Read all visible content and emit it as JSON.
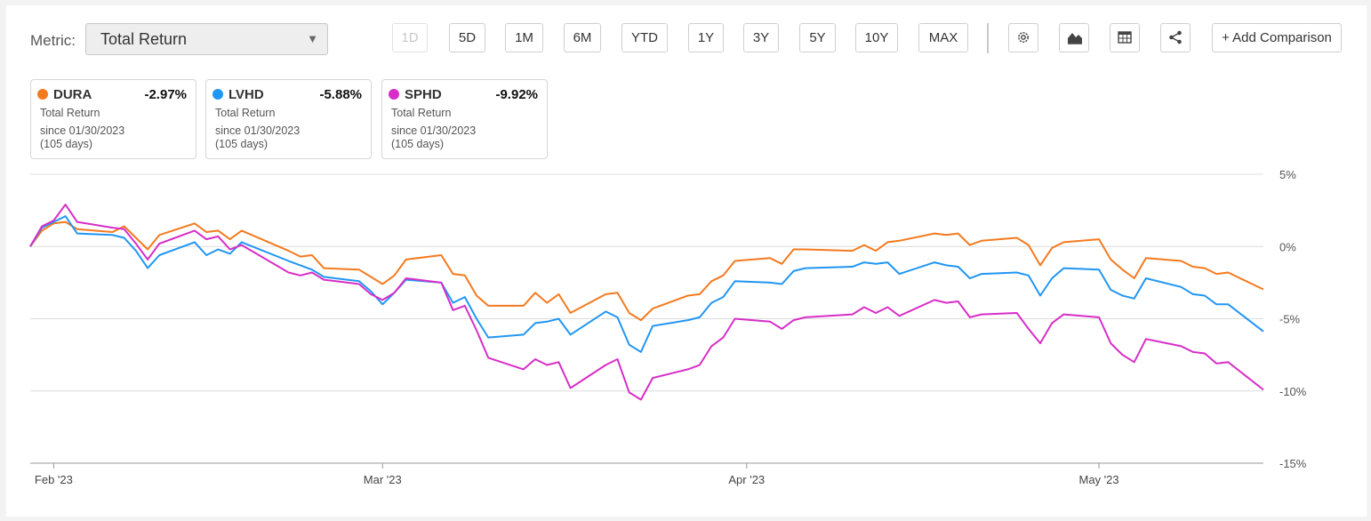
{
  "metric": {
    "label": "Metric:",
    "selected": "Total Return"
  },
  "ranges": [
    "1D",
    "5D",
    "1M",
    "6M",
    "YTD",
    "1Y",
    "3Y",
    "5Y",
    "10Y",
    "MAX"
  ],
  "disabled_range": "1D",
  "toolbar": {
    "icons": [
      "gear-icon",
      "area-chart-icon",
      "table-icon",
      "share-icon"
    ],
    "add_comparison": "+ Add Comparison"
  },
  "cards": [
    {
      "ticker": "DURA",
      "value": "-2.97%",
      "metric": "Total Return",
      "since": "since 01/30/2023",
      "days": "(105 days)",
      "color": "#f47a1f"
    },
    {
      "ticker": "LVHD",
      "value": "-5.88%",
      "metric": "Total Return",
      "since": "since 01/30/2023",
      "days": "(105 days)",
      "color": "#2196f3"
    },
    {
      "ticker": "SPHD",
      "value": "-9.92%",
      "metric": "Total Return",
      "since": "since 01/30/2023",
      "days": "(105 days)",
      "color": "#d72ec8"
    }
  ],
  "chart_data": {
    "type": "line",
    "ylim": [
      -15,
      5
    ],
    "yticks": [
      5,
      0,
      -5,
      -10,
      -15
    ],
    "ytick_labels": [
      "5%",
      "0%",
      "-5%",
      "-10%",
      "-15%"
    ],
    "xlim": [
      "2023-01-30",
      "2023-05-15"
    ],
    "xticks": [
      {
        "date": "2023-02-01",
        "label": "Feb '23"
      },
      {
        "date": "2023-03-01",
        "label": "Mar '23"
      },
      {
        "date": "2023-04-01",
        "label": "Apr '23"
      },
      {
        "date": "2023-05-01",
        "label": "May '23"
      }
    ],
    "grid": true,
    "dates": [
      "2023-01-30",
      "2023-01-31",
      "2023-02-01",
      "2023-02-02",
      "2023-02-03",
      "2023-02-06",
      "2023-02-07",
      "2023-02-08",
      "2023-02-09",
      "2023-02-10",
      "2023-02-13",
      "2023-02-14",
      "2023-02-15",
      "2023-02-16",
      "2023-02-17",
      "2023-02-21",
      "2023-02-22",
      "2023-02-23",
      "2023-02-24",
      "2023-02-27",
      "2023-02-28",
      "2023-03-01",
      "2023-03-02",
      "2023-03-03",
      "2023-03-06",
      "2023-03-07",
      "2023-03-08",
      "2023-03-09",
      "2023-03-10",
      "2023-03-13",
      "2023-03-14",
      "2023-03-15",
      "2023-03-16",
      "2023-03-17",
      "2023-03-20",
      "2023-03-21",
      "2023-03-22",
      "2023-03-23",
      "2023-03-24",
      "2023-03-27",
      "2023-03-28",
      "2023-03-29",
      "2023-03-30",
      "2023-03-31",
      "2023-04-03",
      "2023-04-04",
      "2023-04-05",
      "2023-04-06",
      "2023-04-10",
      "2023-04-11",
      "2023-04-12",
      "2023-04-13",
      "2023-04-14",
      "2023-04-17",
      "2023-04-18",
      "2023-04-19",
      "2023-04-20",
      "2023-04-21",
      "2023-04-24",
      "2023-04-25",
      "2023-04-26",
      "2023-04-27",
      "2023-04-28",
      "2023-05-01",
      "2023-05-02",
      "2023-05-03",
      "2023-05-04",
      "2023-05-05",
      "2023-05-08",
      "2023-05-09",
      "2023-05-10",
      "2023-05-11",
      "2023-05-12",
      "2023-05-15"
    ],
    "series": [
      {
        "name": "DURA",
        "color": "#f47a1f",
        "values": [
          0,
          1.1,
          1.6,
          1.7,
          1.2,
          1.0,
          1.4,
          0.6,
          -0.2,
          0.8,
          1.6,
          1.0,
          1.1,
          0.5,
          1.1,
          -0.3,
          -0.7,
          -0.6,
          -1.5,
          -1.6,
          -2.1,
          -2.6,
          -2.0,
          -0.9,
          -0.6,
          -1.9,
          -2.0,
          -3.4,
          -4.1,
          -4.1,
          -3.2,
          -3.9,
          -3.3,
          -4.6,
          -3.3,
          -3.2,
          -4.6,
          -5.1,
          -4.3,
          -3.4,
          -3.3,
          -2.4,
          -2.0,
          -1.0,
          -0.8,
          -1.2,
          -0.2,
          -0.2,
          -0.3,
          0.1,
          -0.3,
          0.3,
          0.4,
          0.9,
          0.8,
          0.9,
          0.1,
          0.4,
          0.6,
          0.1,
          -1.3,
          -0.1,
          0.3,
          0.5,
          -0.9,
          -1.6,
          -2.2,
          -0.8,
          -1.0,
          -1.4,
          -1.5,
          -1.9,
          -1.8,
          -2.97
        ]
      },
      {
        "name": "LVHD",
        "color": "#2196f3",
        "values": [
          0,
          1.3,
          1.7,
          2.1,
          0.9,
          0.8,
          0.6,
          -0.3,
          -1.5,
          -0.6,
          0.3,
          -0.6,
          -0.2,
          -0.5,
          0.3,
          -1.0,
          -1.3,
          -1.6,
          -2.1,
          -2.4,
          -3.1,
          -4.0,
          -3.2,
          -2.3,
          -2.5,
          -3.9,
          -3.5,
          -5.0,
          -6.3,
          -6.1,
          -5.3,
          -5.2,
          -5.0,
          -6.1,
          -4.5,
          -4.9,
          -6.8,
          -7.3,
          -5.5,
          -5.1,
          -4.9,
          -3.9,
          -3.5,
          -2.4,
          -2.5,
          -2.6,
          -1.7,
          -1.5,
          -1.4,
          -1.1,
          -1.2,
          -1.1,
          -1.9,
          -1.1,
          -1.3,
          -1.4,
          -2.2,
          -1.9,
          -1.8,
          -2.0,
          -3.4,
          -2.2,
          -1.5,
          -1.6,
          -3.0,
          -3.4,
          -3.6,
          -2.2,
          -2.8,
          -3.3,
          -3.4,
          -4.0,
          -4.0,
          -5.88
        ]
      },
      {
        "name": "SPHD",
        "color": "#d72ec8",
        "values": [
          0,
          1.4,
          1.8,
          2.9,
          1.7,
          1.3,
          1.2,
          0.2,
          -0.9,
          0.2,
          1.1,
          0.5,
          0.7,
          -0.2,
          0.1,
          -1.8,
          -2.0,
          -1.8,
          -2.3,
          -2.6,
          -3.3,
          -3.7,
          -3.2,
          -2.2,
          -2.5,
          -4.4,
          -4.1,
          -5.8,
          -7.7,
          -8.5,
          -7.8,
          -8.2,
          -8.0,
          -9.8,
          -8.2,
          -7.8,
          -10.1,
          -10.6,
          -9.1,
          -8.5,
          -8.2,
          -6.9,
          -6.3,
          -5.0,
          -5.2,
          -5.7,
          -5.1,
          -4.9,
          -4.7,
          -4.2,
          -4.6,
          -4.2,
          -4.8,
          -3.7,
          -3.9,
          -3.8,
          -4.9,
          -4.7,
          -4.6,
          -5.7,
          -6.7,
          -5.3,
          -4.7,
          -4.9,
          -6.7,
          -7.5,
          -8.0,
          -6.4,
          -6.9,
          -7.3,
          -7.4,
          -8.1,
          -8.0,
          -9.92
        ]
      }
    ]
  }
}
